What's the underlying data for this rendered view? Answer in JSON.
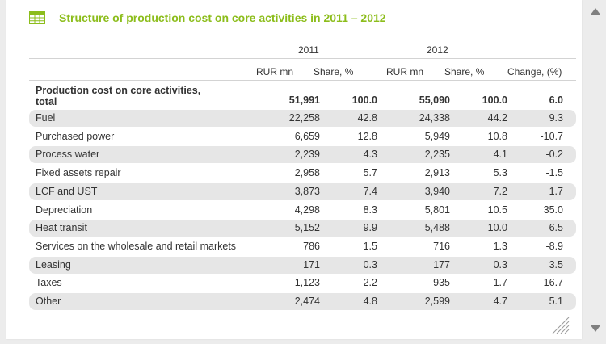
{
  "title": "Structure of production cost on core activities in 2011 – 2012",
  "icons": {
    "table": "table-icon",
    "scroll_up": "arrow-up-icon",
    "scroll_down": "arrow-down-icon",
    "resize": "resize-grip-icon"
  },
  "colors": {
    "title": "#8cbd1b",
    "row_shade": "#e6e6e6",
    "background": "#ececec"
  },
  "columns": {
    "year_2011": "2011",
    "year_2012": "2012",
    "rur_2011": "RUR mn",
    "share_2011": "Share, %",
    "rur_2012": "RUR mn",
    "share_2012": "Share, %",
    "change": "Change, (%)"
  },
  "total": {
    "label_line1": "Production cost on core activities,",
    "label_line2": "total",
    "rur_2011": "51,991",
    "share_2011": "100.0",
    "rur_2012": "55,090",
    "share_2012": "100.0",
    "change": "6.0"
  },
  "rows": [
    {
      "label": "Fuel",
      "rur_2011": "22,258",
      "share_2011": "42.8",
      "rur_2012": "24,338",
      "share_2012": "44.2",
      "change": "9.3"
    },
    {
      "label": "Purchased power",
      "rur_2011": "6,659",
      "share_2011": "12.8",
      "rur_2012": "5,949",
      "share_2012": "10.8",
      "change": "-10.7"
    },
    {
      "label": "Process water",
      "rur_2011": "2,239",
      "share_2011": "4.3",
      "rur_2012": "2,235",
      "share_2012": "4.1",
      "change": "-0.2"
    },
    {
      "label": "Fixed assets repair",
      "rur_2011": "2,958",
      "share_2011": "5.7",
      "rur_2012": "2,913",
      "share_2012": "5.3",
      "change": "-1.5"
    },
    {
      "label": "LCF and UST",
      "rur_2011": "3,873",
      "share_2011": "7.4",
      "rur_2012": "3,940",
      "share_2012": "7.2",
      "change": "1.7"
    },
    {
      "label": "Depreciation",
      "rur_2011": "4,298",
      "share_2011": "8.3",
      "rur_2012": "5,801",
      "share_2012": "10.5",
      "change": "35.0"
    },
    {
      "label": "Heat transit",
      "rur_2011": "5,152",
      "share_2011": "9.9",
      "rur_2012": "5,488",
      "share_2012": "10.0",
      "change": "6.5"
    },
    {
      "label": "Services on the wholesale and retail markets",
      "rur_2011": "786",
      "share_2011": "1.5",
      "rur_2012": "716",
      "share_2012": "1.3",
      "change": "-8.9"
    },
    {
      "label": "Leasing",
      "rur_2011": "171",
      "share_2011": "0.3",
      "rur_2012": "177",
      "share_2012": "0.3",
      "change": "3.5"
    },
    {
      "label": "Taxes",
      "rur_2011": "1,123",
      "share_2011": "2.2",
      "rur_2012": "935",
      "share_2012": "1.7",
      "change": "-16.7"
    },
    {
      "label": "Other",
      "rur_2011": "2,474",
      "share_2011": "4.8",
      "rur_2012": "2,599",
      "share_2012": "4.7",
      "change": "5.1"
    }
  ]
}
